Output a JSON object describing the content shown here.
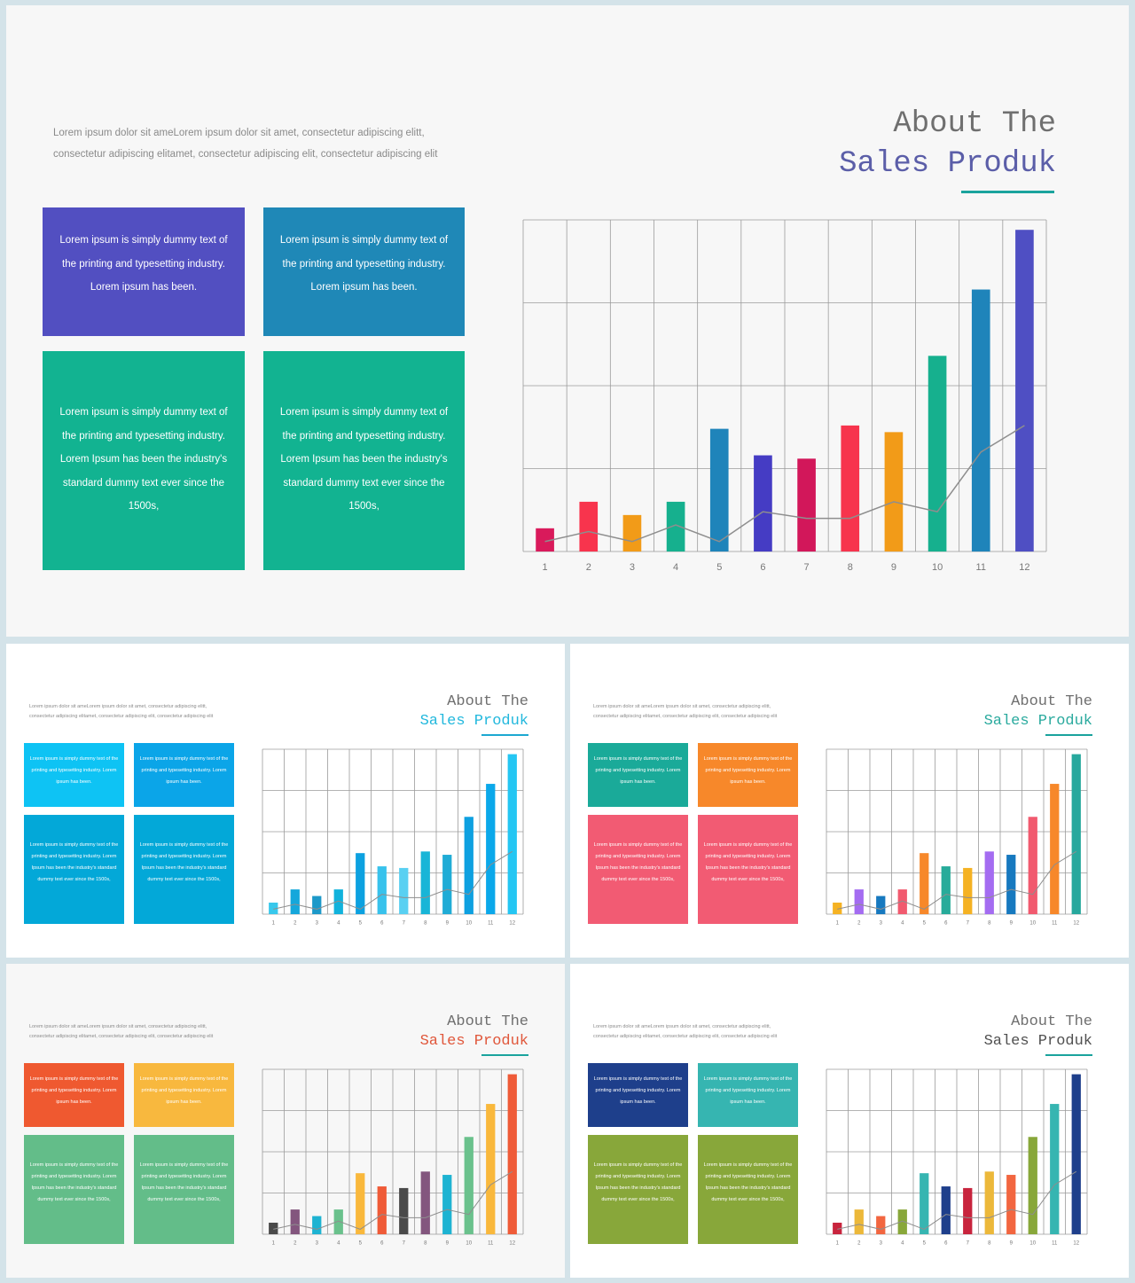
{
  "text": {
    "intro": "Lorem  ipsum dolor sit ameLorem  ipsum dolor sit amet, consectetur adipiscing elitt, consectetur adipiscing elitamet, consectetur adipiscing elit, consectetur adipiscing elit",
    "box_short": "Lorem  ipsum is simply dummy text of the printing and typesetting industry. Lorem  ipsum has been.",
    "box_long": "Lorem  ipsum is simply dummy text of the printing and typesetting industry. Lorem  Ipsum has been the industry's standard dummy text ever since the 1500s,",
    "title_line1": "About  The",
    "title_line2": "Sales  Produk"
  },
  "chart_data": {
    "type": "bar",
    "categories": [
      "1",
      "2",
      "3",
      "4",
      "5",
      "6",
      "7",
      "8",
      "9",
      "10",
      "11",
      "12"
    ],
    "values": [
      7,
      15,
      11,
      15,
      37,
      29,
      28,
      38,
      36,
      59,
      79,
      97
    ],
    "trend": [
      3,
      6,
      3,
      8,
      3,
      12,
      10,
      10,
      15,
      12,
      30,
      38
    ],
    "ylim": [
      0,
      100
    ],
    "grid": true
  },
  "themes": [
    {
      "accent": "#1aa39d",
      "title2": "#5b5ea8",
      "boxes": [
        "#524fc1",
        "#1f88b7",
        "#12b391",
        "#12b391"
      ],
      "bars": [
        "#d91a5b",
        "#f8344d",
        "#f29b18",
        "#16b08e",
        "#1f84ba",
        "#453cc4",
        "#d2175a",
        "#f7344d",
        "#f29b18",
        "#16b08e",
        "#1f84ba",
        "#4f4fc3"
      ]
    },
    {
      "accent": "#1ca8d1",
      "title2": "#22b8dd",
      "boxes": [
        "#0ec3f4",
        "#0ba5e8",
        "#03a8d8",
        "#03a8d8"
      ],
      "bars": [
        "#38c8ec",
        "#15a7db",
        "#1d99c9",
        "#11b2dc",
        "#0ca1e0",
        "#38c2ec",
        "#59d0f2",
        "#18b5d7",
        "#20acd6",
        "#0ea0e0",
        "#0ba8ea",
        "#24c6f3"
      ]
    },
    {
      "accent": "#1aa39d",
      "title2": "#2aaa9e",
      "boxes": [
        "#1aaa99",
        "#f7882a",
        "#f25b73",
        "#f25b73"
      ],
      "bars": [
        "#f5b223",
        "#a46cf1",
        "#1779bf",
        "#f15a6f",
        "#f7882a",
        "#27ab9a",
        "#f5b223",
        "#a46cf1",
        "#1779bf",
        "#f15a6f",
        "#f7882a",
        "#27a89d"
      ]
    },
    {
      "accent": "#1aa39d",
      "title2": "#e0573b",
      "boxes": [
        "#ef5930",
        "#f8b83e",
        "#63bd89",
        "#63bd89"
      ],
      "bars": [
        "#4a4a4a",
        "#83567e",
        "#1eb3d2",
        "#6ac18c",
        "#f9b83c",
        "#ef5b38",
        "#4a4a4a",
        "#83567e",
        "#1eb3d2",
        "#6ac18c",
        "#f9b83c",
        "#ef5b38"
      ]
    },
    {
      "accent": "#1aa39d",
      "title2": "#505050",
      "boxes": [
        "#1e3f8b",
        "#36b5b1",
        "#88a73a",
        "#88a73a"
      ],
      "bars": [
        "#c8243d",
        "#ecb83a",
        "#f26640",
        "#88a73a",
        "#36b5b1",
        "#1e3f8b",
        "#c8243d",
        "#ecb83a",
        "#f26640",
        "#88a73a",
        "#36b5b1",
        "#1e3f8b"
      ]
    }
  ]
}
